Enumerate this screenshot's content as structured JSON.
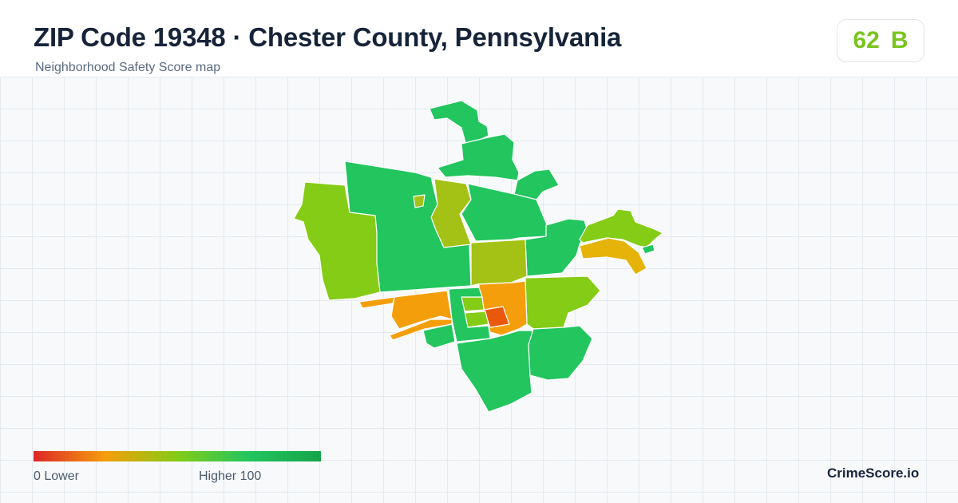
{
  "header": {
    "title": "ZIP Code 19348 · Chester County, Pennsylvania",
    "subtitle": "Neighborhood Safety Score map"
  },
  "score_badge": {
    "score": "62",
    "grade": "B",
    "color": "#7ac41e"
  },
  "legend": {
    "min_label": "0  Lower",
    "max_label": "Higher  100",
    "gradient_colors": [
      "#dc2626",
      "#f59e0b",
      "#84cc16",
      "#22c55e",
      "#16a34a"
    ]
  },
  "brand": "CrimeScore.io",
  "map": {
    "palette": {
      "high": "#22c55e",
      "mid_high": "#84cc16",
      "mid": "#a3c215",
      "mid_low": "#e6b309",
      "low": "#f59e0b",
      "lowest": "#ea580c"
    }
  }
}
